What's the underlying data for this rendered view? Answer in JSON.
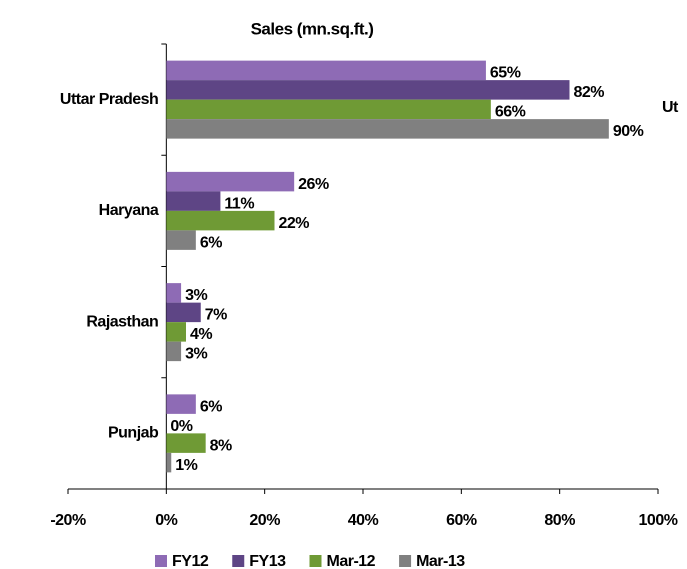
{
  "chart_data": {
    "type": "bar",
    "orientation": "horizontal",
    "title": "Sales (mn.sq.ft.)",
    "categories": [
      "Uttar Pradesh",
      "Haryana",
      "Rajasthan",
      "Punjab"
    ],
    "series": [
      {
        "name": "FY12",
        "color": "#8e6bb5",
        "values": [
          65,
          26,
          3,
          6
        ],
        "value_labels": [
          "65%",
          "26%",
          "3%",
          "6%"
        ]
      },
      {
        "name": "FY13",
        "color": "#5e4585",
        "values": [
          82,
          11,
          7,
          0
        ],
        "value_labels": [
          "82%",
          "11%",
          "7%",
          "0%"
        ]
      },
      {
        "name": "Mar-12",
        "color": "#6f9a35",
        "values": [
          66,
          22,
          4,
          8
        ],
        "value_labels": [
          "66%",
          "22%",
          "4%",
          "8%"
        ]
      },
      {
        "name": "Mar-13",
        "color": "#808080",
        "values": [
          90,
          6,
          3,
          1
        ],
        "value_labels": [
          "90%",
          "6%",
          "3%",
          "1%"
        ]
      }
    ],
    "xlim": [
      -20,
      100
    ],
    "xticks": [
      {
        "value": -20,
        "label": "-20%"
      },
      {
        "value": 0,
        "label": "0%"
      },
      {
        "value": 20,
        "label": "20%"
      },
      {
        "value": 40,
        "label": "40%"
      },
      {
        "value": 60,
        "label": "60%"
      },
      {
        "value": 80,
        "label": "80%"
      },
      {
        "value": 100,
        "label": "100%"
      }
    ],
    "annotation": "Ut",
    "legend": "bottom"
  }
}
